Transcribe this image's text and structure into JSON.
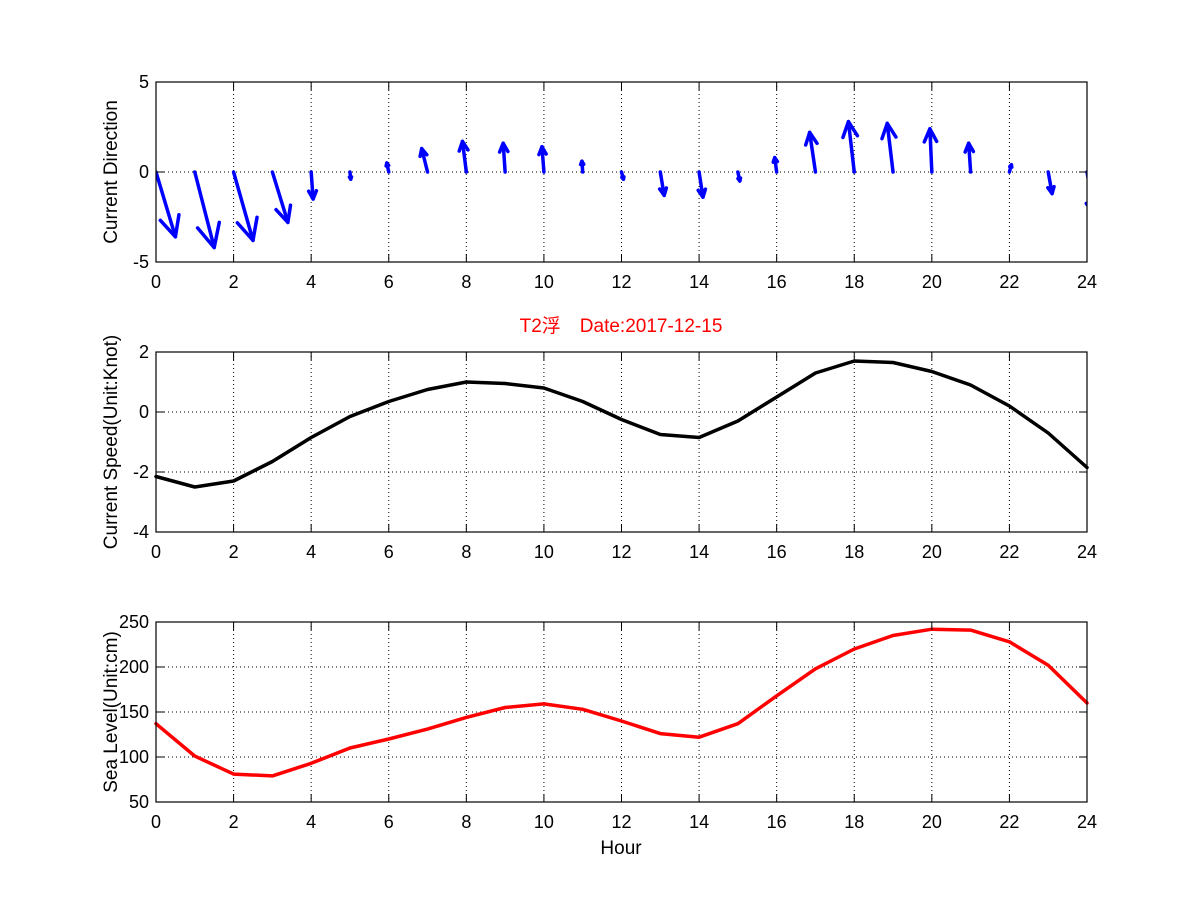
{
  "figure": {
    "title": "T2浮　Date:2017-12-15",
    "xlabel": "Hour",
    "colors": {
      "direction": "#0000ff",
      "speed": "#000000",
      "level": "#ff0000",
      "title": "#ff0000"
    }
  },
  "chart_data": [
    {
      "type": "quiver",
      "xlabel": "",
      "ylabel": "Current Direction",
      "xlim": [
        0,
        24
      ],
      "ylim": [
        -5,
        5
      ],
      "x_ticks": [
        0,
        2,
        4,
        6,
        8,
        10,
        12,
        14,
        16,
        18,
        20,
        22,
        24
      ],
      "y_ticks": [
        -5,
        0,
        5
      ],
      "grid": true,
      "series": [
        {
          "x": [
            0,
            1,
            2,
            3,
            4,
            5,
            6,
            7,
            8,
            9,
            10,
            11,
            12,
            13,
            14,
            15,
            16,
            17,
            18,
            19,
            20,
            21,
            22,
            23,
            24
          ],
          "u": [
            0.5,
            0.5,
            0.5,
            0.4,
            0.05,
            0.02,
            -0.05,
            -0.15,
            -0.1,
            -0.05,
            -0.05,
            -0.02,
            0.05,
            0.1,
            0.1,
            0.05,
            -0.05,
            -0.15,
            -0.15,
            -0.15,
            -0.05,
            -0.05,
            0.05,
            0.1,
            0.2
          ],
          "v": [
            -3.6,
            -4.2,
            -3.8,
            -2.8,
            -1.5,
            -0.4,
            0.5,
            1.3,
            1.7,
            1.6,
            1.4,
            0.6,
            -0.4,
            -1.3,
            -1.4,
            -0.5,
            0.8,
            2.2,
            2.8,
            2.7,
            2.4,
            1.6,
            0.4,
            -1.2,
            -2.4
          ]
        }
      ]
    },
    {
      "type": "line",
      "xlabel": "",
      "ylabel": "Current Speed(Unit:Knot)",
      "xlim": [
        0,
        24
      ],
      "ylim": [
        -4,
        2
      ],
      "x_ticks": [
        0,
        2,
        4,
        6,
        8,
        10,
        12,
        14,
        16,
        18,
        20,
        22,
        24
      ],
      "y_ticks": [
        -4,
        -2,
        0,
        2
      ],
      "grid": true,
      "series": [
        {
          "x": [
            0,
            1,
            2,
            3,
            4,
            5,
            6,
            7,
            8,
            9,
            10,
            11,
            12,
            13,
            14,
            15,
            16,
            17,
            18,
            19,
            20,
            21,
            22,
            23,
            24
          ],
          "y": [
            -2.15,
            -2.5,
            -2.3,
            -1.65,
            -0.85,
            -0.15,
            0.35,
            0.75,
            1.0,
            0.95,
            0.8,
            0.35,
            -0.25,
            -0.75,
            -0.85,
            -0.3,
            0.5,
            1.3,
            1.7,
            1.65,
            1.35,
            0.9,
            0.2,
            -0.7,
            -1.85
          ]
        }
      ]
    },
    {
      "type": "line",
      "xlabel": "Hour",
      "ylabel": "Sea Level(Unit:cm)",
      "xlim": [
        0,
        24
      ],
      "ylim": [
        50,
        250
      ],
      "x_ticks": [
        0,
        2,
        4,
        6,
        8,
        10,
        12,
        14,
        16,
        18,
        20,
        22,
        24
      ],
      "y_ticks": [
        50,
        100,
        150,
        200,
        250
      ],
      "grid": true,
      "series": [
        {
          "x": [
            0,
            1,
            2,
            3,
            4,
            5,
            6,
            7,
            8,
            9,
            10,
            11,
            12,
            13,
            14,
            15,
            16,
            17,
            18,
            19,
            20,
            21,
            22,
            23,
            24
          ],
          "y": [
            137,
            101,
            81,
            79,
            93,
            110,
            120,
            131,
            144,
            155,
            159,
            153,
            140,
            126,
            122,
            137,
            168,
            198,
            220,
            235,
            242,
            241,
            228,
            202,
            160
          ]
        }
      ]
    }
  ]
}
